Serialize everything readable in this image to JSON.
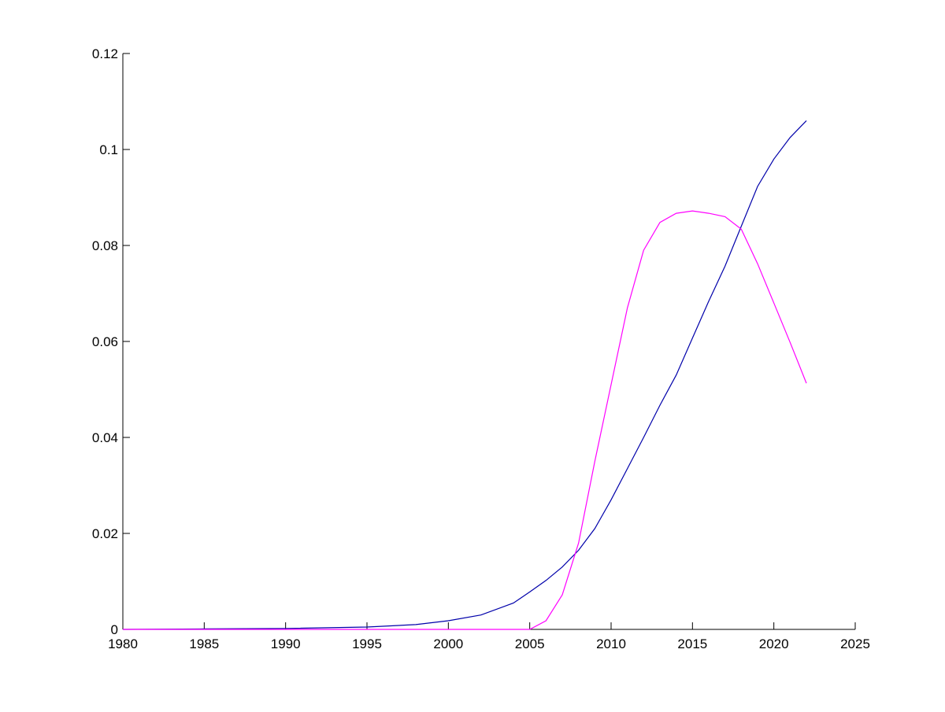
{
  "chart_data": {
    "type": "line",
    "title": "",
    "xlabel": "",
    "ylabel": "",
    "xlim": [
      1980,
      2025
    ],
    "ylim": [
      0,
      0.12
    ],
    "grid": false,
    "xticks": [
      "1980",
      "1985",
      "1990",
      "1995",
      "2000",
      "2005",
      "2010",
      "2015",
      "2020",
      "2025"
    ],
    "yticks": [
      "0",
      "0.02",
      "0.04",
      "0.06",
      "0.08",
      "0.1",
      "0.12"
    ],
    "series": [
      {
        "color": "#0000aa",
        "x": [
          1980,
          1985,
          1990,
          1995,
          1998,
          2000,
          2002,
          2004,
          2005,
          2006,
          2007,
          2008,
          2009,
          2010,
          2011,
          2012,
          2013,
          2014,
          2015,
          2016,
          2017,
          2018,
          2019,
          2020,
          2021,
          2022
        ],
        "y": [
          0,
          0.0001,
          0.0002,
          0.0005,
          0.001,
          0.0018,
          0.003,
          0.0055,
          0.0078,
          0.0102,
          0.013,
          0.0165,
          0.021,
          0.027,
          0.0335,
          0.04,
          0.0467,
          0.053,
          0.0607,
          0.0684,
          0.0757,
          0.084,
          0.0923,
          0.098,
          0.1025,
          0.106
        ]
      },
      {
        "color": "#ff00ff",
        "x": [
          1980,
          2005,
          2006,
          2007,
          2008,
          2009,
          2010,
          2011,
          2012,
          2013,
          2014,
          2015,
          2016,
          2017,
          2018,
          2019,
          2020,
          2021,
          2022
        ],
        "y": [
          0,
          0,
          0.0018,
          0.0072,
          0.018,
          0.035,
          0.051,
          0.067,
          0.079,
          0.0848,
          0.0867,
          0.0872,
          0.0867,
          0.086,
          0.0834,
          0.0762,
          0.068,
          0.0598,
          0.0513
        ]
      }
    ]
  }
}
